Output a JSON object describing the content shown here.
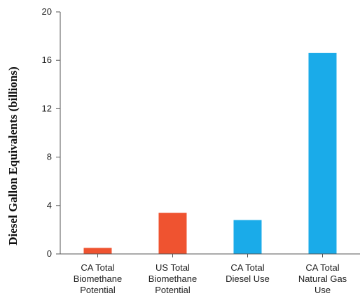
{
  "chart_data": {
    "type": "bar",
    "title": "",
    "xlabel": "",
    "ylabel": "Diesel Gallon Equivalents (billions)",
    "ylim": [
      0,
      20
    ],
    "yticks": [
      0,
      4,
      8,
      12,
      16,
      20
    ],
    "grid": false,
    "legend": "none",
    "categories": [
      [
        "CA Total",
        "Biomethane",
        "Potential"
      ],
      [
        "US Total",
        "Biomethane",
        "Potential"
      ],
      [
        "CA Total",
        "Diesel Use"
      ],
      [
        "CA Total",
        "Natural Gas",
        "Use"
      ]
    ],
    "values": [
      0.5,
      3.4,
      2.8,
      16.6
    ],
    "colors": [
      "#ef5330",
      "#ef5330",
      "#1aabe9",
      "#1aabe9"
    ],
    "axis_color": "#555555"
  }
}
